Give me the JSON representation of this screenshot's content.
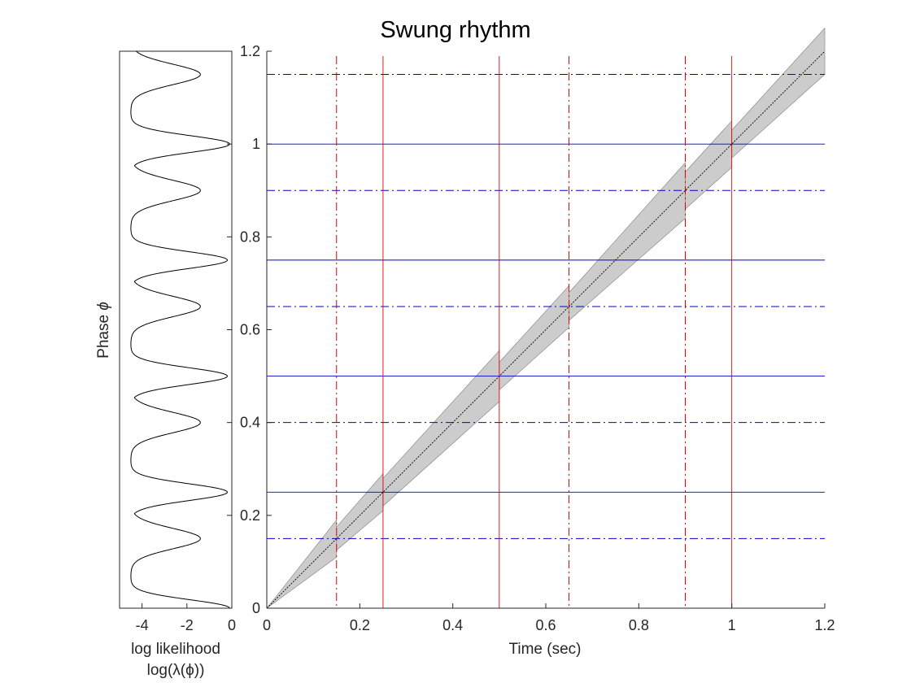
{
  "chart_data": [
    {
      "type": "line",
      "panel": "log-likelihood",
      "title": "",
      "xlabel_lines": [
        "log likelihood",
        "log(λ(ϕ))"
      ],
      "ylabel_prefix": "Phase ",
      "ylabel_symbol": "ϕ",
      "xlim": [
        -5,
        0
      ],
      "ylim": [
        0,
        1.2
      ],
      "xticks": [
        -4,
        -2,
        0
      ],
      "xtick_labels": [
        "-4",
        "-2",
        "0"
      ],
      "yticks": [
        0,
        0.2,
        0.4,
        0.6,
        0.8,
        1.0,
        1.2
      ],
      "ytick_labels": [],
      "line_color": "#000000",
      "curve": {
        "peaks": [
          {
            "phase": 0.0,
            "min_value": -0.1,
            "width": 0.018
          },
          {
            "phase": 0.15,
            "min_value": -1.4,
            "width": 0.022
          },
          {
            "phase": 0.25,
            "min_value": -0.2,
            "width": 0.018
          },
          {
            "phase": 0.4,
            "min_value": -1.4,
            "width": 0.022
          },
          {
            "phase": 0.5,
            "min_value": -0.2,
            "width": 0.018
          },
          {
            "phase": 0.65,
            "min_value": -1.4,
            "width": 0.022
          },
          {
            "phase": 0.75,
            "min_value": -0.2,
            "width": 0.018
          },
          {
            "phase": 0.9,
            "min_value": -1.4,
            "width": 0.022
          },
          {
            "phase": 1.0,
            "min_value": -0.1,
            "width": 0.018
          },
          {
            "phase": 1.15,
            "min_value": -1.4,
            "width": 0.022
          }
        ],
        "floor": -4.5
      }
    },
    {
      "type": "line",
      "panel": "phase-vs-time",
      "title": "Swung rhythm",
      "xlabel": "Time (sec)",
      "xlim": [
        0,
        1.2
      ],
      "ylim": [
        0,
        1.2
      ],
      "xticks": [
        0,
        0.2,
        0.4,
        0.6,
        0.8,
        1.0,
        1.2
      ],
      "xtick_labels": [
        "0",
        "0.2",
        "0.4",
        "0.6",
        "0.8",
        "1",
        "1.2"
      ],
      "yticks": [
        0,
        0.2,
        0.4,
        0.6,
        0.8,
        1.0,
        1.2
      ],
      "ytick_labels": [
        "0",
        "0.2",
        "0.4",
        "0.6",
        "0.8",
        "1",
        "1.2"
      ],
      "band_color": "#cccccc",
      "band_edge_color": "#7f7f7f",
      "line_color": "#000000",
      "phase_line_color": "#0000cc",
      "onset_line_color": "#e00000",
      "horizontal_solid_phases": [
        0.25,
        0.5,
        0.75,
        1.0
      ],
      "horizontal_dashdot_phases": [
        0.15,
        0.4,
        0.65,
        0.9,
        1.15
      ],
      "vertical_solid_times": [
        0.25,
        0.5,
        1.0
      ],
      "vertical_dashdot_times": [
        0.15,
        0.65,
        0.9
      ],
      "mean_line": {
        "x": [
          0,
          1.2
        ],
        "y": [
          0,
          1.2
        ]
      },
      "uncertainty_band": [
        {
          "t0": 0.0,
          "t1": 0.15,
          "w0": 0.0,
          "w1": 0.04
        },
        {
          "t0": 0.15,
          "t1": 0.25,
          "w0": 0.025,
          "w1": 0.04
        },
        {
          "t0": 0.25,
          "t1": 0.5,
          "w0": 0.03,
          "w1": 0.055
        },
        {
          "t0": 0.5,
          "t1": 0.65,
          "w0": 0.03,
          "w1": 0.045
        },
        {
          "t0": 0.65,
          "t1": 0.9,
          "w0": 0.03,
          "w1": 0.06
        },
        {
          "t0": 0.9,
          "t1": 1.0,
          "w0": 0.04,
          "w1": 0.05
        },
        {
          "t0": 1.0,
          "t1": 1.2,
          "w0": 0.03,
          "w1": 0.05
        }
      ]
    }
  ]
}
